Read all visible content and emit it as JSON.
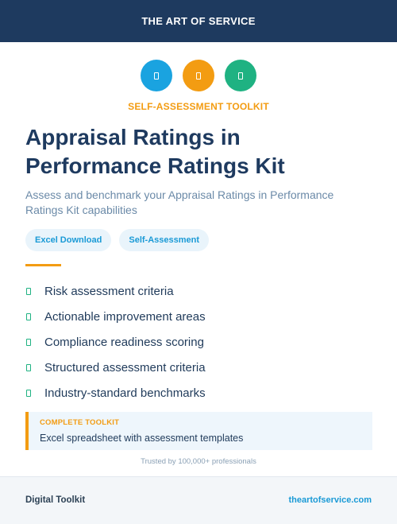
{
  "header": {
    "brand": "THE ART OF SERVICE"
  },
  "icons": [
    "document-icon",
    "document-icon",
    "document-icon"
  ],
  "eyebrow": "SELF-ASSESSMENT TOOLKIT",
  "title": "Appraisal Ratings in Performance Ratings Kit",
  "subtitle": "Assess and benchmark your Appraisal Ratings in Performance Ratings Kit capabilities",
  "tags": [
    "Excel Download",
    "Self-Assessment"
  ],
  "features": [
    "Risk assessment criteria",
    "Actionable improvement areas",
    "Compliance readiness scoring",
    "Structured assessment criteria",
    "Industry-standard benchmarks"
  ],
  "callout": {
    "label": "COMPLETE TOOLKIT",
    "text": "Excel spreadsheet with assessment templates"
  },
  "trusted": "Trusted by 100,000+ professionals",
  "footer": {
    "left": "Digital Toolkit",
    "right": "theartofservice.com"
  },
  "colors": {
    "header_bg": "#1e3a5f",
    "accent_orange": "#f39c12",
    "accent_blue": "#1aa3e0",
    "accent_green": "#1fb282"
  }
}
